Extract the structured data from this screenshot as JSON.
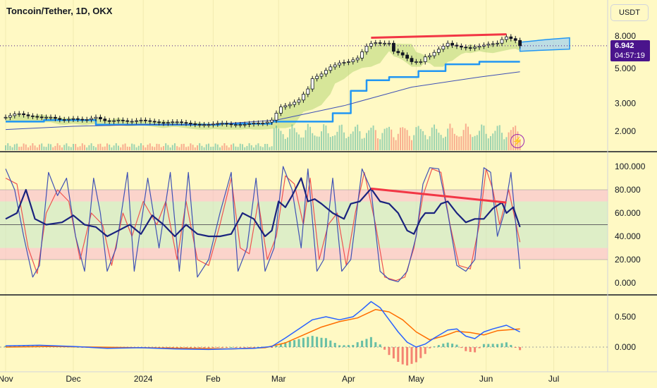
{
  "title": "Toncoin/Tether, 1D, OKX",
  "currency_button": "USDT",
  "price_tag": {
    "price": "6.942",
    "countdown": "04:57:19"
  },
  "flash_icon": "lightning-icon",
  "colors": {
    "background": "#fff9c4",
    "up": "#26a69a",
    "down": "#ef5350",
    "divergence": "#f23645",
    "rsi": "#1a237e",
    "stoch_k": "#3f51b5",
    "stoch_d": "#ef5350",
    "macd": "#2962ff",
    "signal": "#ff6d00",
    "price_tag": "#4a148c",
    "step_line": "#2196f3"
  },
  "chart_data": [
    {
      "type": "line",
      "name_label": "price-pane",
      "scale": "log",
      "y_ticks": [
        "8.000",
        "5.000",
        "3.000",
        "2.000"
      ],
      "y_tick_values": [
        8,
        5,
        3,
        2
      ],
      "x_labels": [
        "Nov",
        "Dec",
        "2024",
        "Feb",
        "Mar",
        "Apr",
        "May",
        "Jun",
        "Jul"
      ],
      "x_label_days": [
        0,
        30,
        61,
        92,
        121,
        152,
        182,
        213,
        243
      ],
      "last_price": 6.942,
      "close": [
        [
          0,
          2.45
        ],
        [
          5,
          2.6
        ],
        [
          10,
          2.5
        ],
        [
          15,
          2.45
        ],
        [
          20,
          2.45
        ],
        [
          25,
          2.35
        ],
        [
          30,
          2.4
        ],
        [
          35,
          2.35
        ],
        [
          40,
          2.45
        ],
        [
          45,
          2.3
        ],
        [
          50,
          2.35
        ],
        [
          55,
          2.3
        ],
        [
          60,
          2.35
        ],
        [
          65,
          2.3
        ],
        [
          70,
          2.25
        ],
        [
          75,
          2.3
        ],
        [
          80,
          2.25
        ],
        [
          85,
          2.2
        ],
        [
          90,
          2.2
        ],
        [
          95,
          2.25
        ],
        [
          100,
          2.2
        ],
        [
          105,
          2.2
        ],
        [
          110,
          2.25
        ],
        [
          115,
          2.25
        ],
        [
          118,
          2.35
        ],
        [
          122,
          2.85
        ],
        [
          126,
          2.95
        ],
        [
          130,
          3.15
        ],
        [
          134,
          3.7
        ],
        [
          136,
          4.3
        ],
        [
          140,
          4.6
        ],
        [
          144,
          5.1
        ],
        [
          148,
          5.4
        ],
        [
          152,
          5.5
        ],
        [
          156,
          5.8
        ],
        [
          160,
          6.9
        ],
        [
          163,
          7.3
        ],
        [
          165,
          7.2
        ],
        [
          170,
          7.2
        ],
        [
          172,
          6.4
        ],
        [
          175,
          6.2
        ],
        [
          180,
          5.5
        ],
        [
          184,
          5.5
        ],
        [
          186,
          5.9
        ],
        [
          188,
          6.0
        ],
        [
          192,
          6.6
        ],
        [
          196,
          7.2
        ],
        [
          198,
          7.0
        ],
        [
          202,
          6.8
        ],
        [
          206,
          6.7
        ],
        [
          210,
          6.9
        ],
        [
          214,
          7.1
        ],
        [
          218,
          7.2
        ],
        [
          220,
          7.6
        ],
        [
          222,
          7.9
        ],
        [
          226,
          7.5
        ],
        [
          228,
          6.94
        ]
      ],
      "ma_blue": [
        [
          0,
          2.05
        ],
        [
          30,
          2.15
        ],
        [
          60,
          2.2
        ],
        [
          90,
          2.2
        ],
        [
          120,
          2.35
        ],
        [
          150,
          2.9
        ],
        [
          180,
          3.8
        ],
        [
          210,
          4.4
        ],
        [
          228,
          4.75
        ]
      ],
      "step_line": [
        [
          0,
          2.3
        ],
        [
          17,
          2.3
        ],
        [
          17,
          2.35
        ],
        [
          40,
          2.35
        ],
        [
          40,
          2.2
        ],
        [
          95,
          2.2
        ],
        [
          95,
          2.23
        ],
        [
          118,
          2.23
        ],
        [
          118,
          2.3
        ],
        [
          145,
          2.3
        ],
        [
          145,
          2.6
        ],
        [
          153,
          2.6
        ],
        [
          153,
          3.6
        ],
        [
          160,
          3.6
        ],
        [
          160,
          4.2
        ],
        [
          170,
          4.2
        ],
        [
          170,
          4.4
        ],
        [
          183,
          4.4
        ],
        [
          183,
          4.8
        ],
        [
          195,
          4.8
        ],
        [
          195,
          5.3
        ],
        [
          210,
          5.3
        ],
        [
          210,
          5.5
        ],
        [
          228,
          5.5
        ]
      ],
      "cloud_top": [
        [
          228,
          7.3
        ],
        [
          240,
          7.6
        ],
        [
          250,
          7.8
        ]
      ],
      "cloud_bottom": [
        [
          228,
          6.4
        ],
        [
          238,
          6.5
        ],
        [
          250,
          6.6
        ]
      ],
      "divergence_line": [
        [
          162,
          7.8
        ],
        [
          222,
          8.2
        ]
      ]
    },
    {
      "type": "line",
      "name_label": "rsi-stoch-pane",
      "y_ticks": [
        "100.000",
        "80.000",
        "60.000",
        "40.000",
        "20.000",
        "0.000"
      ],
      "y_tick_values": [
        100,
        80,
        60,
        40,
        20,
        0
      ],
      "bands": [
        [
          70,
          80
        ],
        [
          30,
          70
        ],
        [
          20,
          30
        ]
      ],
      "midline": 50,
      "rsi": [
        [
          0,
          55
        ],
        [
          5,
          60
        ],
        [
          9,
          80
        ],
        [
          13,
          55
        ],
        [
          18,
          50
        ],
        [
          25,
          52
        ],
        [
          30,
          58
        ],
        [
          35,
          50
        ],
        [
          40,
          48
        ],
        [
          45,
          40
        ],
        [
          50,
          45
        ],
        [
          55,
          50
        ],
        [
          60,
          42
        ],
        [
          65,
          58
        ],
        [
          70,
          50
        ],
        [
          75,
          40
        ],
        [
          80,
          50
        ],
        [
          85,
          42
        ],
        [
          90,
          40
        ],
        [
          95,
          40
        ],
        [
          100,
          42
        ],
        [
          105,
          60
        ],
        [
          110,
          55
        ],
        [
          115,
          40
        ],
        [
          118,
          45
        ],
        [
          121,
          70
        ],
        [
          124,
          65
        ],
        [
          127,
          75
        ],
        [
          131,
          90
        ],
        [
          134,
          70
        ],
        [
          137,
          72
        ],
        [
          140,
          68
        ],
        [
          145,
          60
        ],
        [
          150,
          55
        ],
        [
          153,
          68
        ],
        [
          157,
          70
        ],
        [
          162,
          81
        ],
        [
          166,
          70
        ],
        [
          170,
          68
        ],
        [
          174,
          60
        ],
        [
          178,
          45
        ],
        [
          181,
          42
        ],
        [
          184,
          55
        ],
        [
          186,
          60
        ],
        [
          190,
          60
        ],
        [
          193,
          68
        ],
        [
          196,
          70
        ],
        [
          198,
          65
        ],
        [
          200,
          60
        ],
        [
          204,
          52
        ],
        [
          208,
          55
        ],
        [
          212,
          55
        ],
        [
          216,
          64
        ],
        [
          220,
          69
        ],
        [
          222,
          60
        ],
        [
          225,
          65
        ],
        [
          228,
          48
        ]
      ],
      "stoch_k": [
        [
          0,
          98
        ],
        [
          4,
          80
        ],
        [
          8,
          40
        ],
        [
          12,
          5
        ],
        [
          15,
          15
        ],
        [
          19,
          95
        ],
        [
          23,
          75
        ],
        [
          27,
          90
        ],
        [
          31,
          40
        ],
        [
          35,
          10
        ],
        [
          39,
          90
        ],
        [
          42,
          60
        ],
        [
          45,
          10
        ],
        [
          49,
          30
        ],
        [
          54,
          95
        ],
        [
          57,
          10
        ],
        [
          63,
          90
        ],
        [
          68,
          30
        ],
        [
          73,
          95
        ],
        [
          77,
          10
        ],
        [
          81,
          95
        ],
        [
          85,
          5
        ],
        [
          90,
          20
        ],
        [
          95,
          60
        ],
        [
          100,
          95
        ],
        [
          103,
          10
        ],
        [
          107,
          30
        ],
        [
          111,
          90
        ],
        [
          115,
          10
        ],
        [
          119,
          30
        ],
        [
          123,
          100
        ],
        [
          127,
          80
        ],
        [
          131,
          30
        ],
        [
          134,
          98
        ],
        [
          138,
          10
        ],
        [
          141,
          20
        ],
        [
          145,
          90
        ],
        [
          149,
          10
        ],
        [
          153,
          20
        ],
        [
          158,
          98
        ],
        [
          162,
          80
        ],
        [
          166,
          10
        ],
        [
          170,
          3
        ],
        [
          174,
          1
        ],
        [
          178,
          10
        ],
        [
          182,
          40
        ],
        [
          185,
          85
        ],
        [
          188,
          99
        ],
        [
          192,
          98
        ],
        [
          196,
          60
        ],
        [
          200,
          15
        ],
        [
          204,
          10
        ],
        [
          208,
          20
        ],
        [
          212,
          99
        ],
        [
          215,
          95
        ],
        [
          218,
          40
        ],
        [
          221,
          60
        ],
        [
          224,
          95
        ],
        [
          228,
          12
        ]
      ],
      "stoch_d": [
        [
          0,
          90
        ],
        [
          5,
          85
        ],
        [
          10,
          30
        ],
        [
          14,
          8
        ],
        [
          18,
          60
        ],
        [
          23,
          80
        ],
        [
          28,
          70
        ],
        [
          33,
          20
        ],
        [
          38,
          60
        ],
        [
          43,
          50
        ],
        [
          47,
          15
        ],
        [
          52,
          60
        ],
        [
          56,
          40
        ],
        [
          61,
          70
        ],
        [
          67,
          50
        ],
        [
          71,
          70
        ],
        [
          76,
          20
        ],
        [
          80,
          70
        ],
        [
          85,
          20
        ],
        [
          90,
          15
        ],
        [
          95,
          50
        ],
        [
          100,
          90
        ],
        [
          104,
          30
        ],
        [
          108,
          25
        ],
        [
          112,
          70
        ],
        [
          116,
          20
        ],
        [
          120,
          40
        ],
        [
          124,
          92
        ],
        [
          128,
          85
        ],
        [
          132,
          50
        ],
        [
          135,
          90
        ],
        [
          139,
          20
        ],
        [
          143,
          50
        ],
        [
          147,
          60
        ],
        [
          151,
          15
        ],
        [
          155,
          60
        ],
        [
          159,
          95
        ],
        [
          164,
          50
        ],
        [
          168,
          5
        ],
        [
          173,
          2
        ],
        [
          177,
          5
        ],
        [
          181,
          30
        ],
        [
          185,
          75
        ],
        [
          189,
          98
        ],
        [
          193,
          95
        ],
        [
          197,
          50
        ],
        [
          201,
          15
        ],
        [
          206,
          12
        ],
        [
          210,
          50
        ],
        [
          213,
          98
        ],
        [
          216,
          80
        ],
        [
          219,
          50
        ],
        [
          223,
          80
        ],
        [
          228,
          35
        ]
      ]
    },
    {
      "type": "bar",
      "name_label": "macd-pane",
      "y_ticks": [
        "0.500",
        "0.000"
      ],
      "y_tick_values": [
        0.5,
        0
      ],
      "macd": [
        [
          0,
          0.02
        ],
        [
          15,
          0.03
        ],
        [
          30,
          0.01
        ],
        [
          45,
          -0.02
        ],
        [
          60,
          -0.01
        ],
        [
          75,
          -0.03
        ],
        [
          90,
          -0.04
        ],
        [
          110,
          -0.02
        ],
        [
          118,
          0.01
        ],
        [
          124,
          0.15
        ],
        [
          130,
          0.3
        ],
        [
          136,
          0.45
        ],
        [
          142,
          0.5
        ],
        [
          148,
          0.45
        ],
        [
          154,
          0.5
        ],
        [
          158,
          0.62
        ],
        [
          162,
          0.75
        ],
        [
          166,
          0.65
        ],
        [
          170,
          0.45
        ],
        [
          174,
          0.25
        ],
        [
          178,
          0.08
        ],
        [
          182,
          0
        ],
        [
          186,
          0.05
        ],
        [
          190,
          0.15
        ],
        [
          196,
          0.28
        ],
        [
          200,
          0.3
        ],
        [
          204,
          0.18
        ],
        [
          208,
          0.14
        ],
        [
          212,
          0.25
        ],
        [
          216,
          0.3
        ],
        [
          222,
          0.36
        ],
        [
          228,
          0.25
        ]
      ],
      "signal": [
        [
          0,
          0
        ],
        [
          20,
          0.01
        ],
        [
          40,
          0
        ],
        [
          60,
          -0.01
        ],
        [
          80,
          -0.02
        ],
        [
          100,
          -0.03
        ],
        [
          115,
          -0.01
        ],
        [
          124,
          0.07
        ],
        [
          132,
          0.2
        ],
        [
          140,
          0.33
        ],
        [
          148,
          0.42
        ],
        [
          156,
          0.48
        ],
        [
          164,
          0.62
        ],
        [
          170,
          0.58
        ],
        [
          176,
          0.45
        ],
        [
          182,
          0.25
        ],
        [
          188,
          0.12
        ],
        [
          194,
          0.18
        ],
        [
          200,
          0.26
        ],
        [
          206,
          0.24
        ],
        [
          212,
          0.2
        ],
        [
          218,
          0.27
        ],
        [
          228,
          0.3
        ]
      ]
    }
  ]
}
